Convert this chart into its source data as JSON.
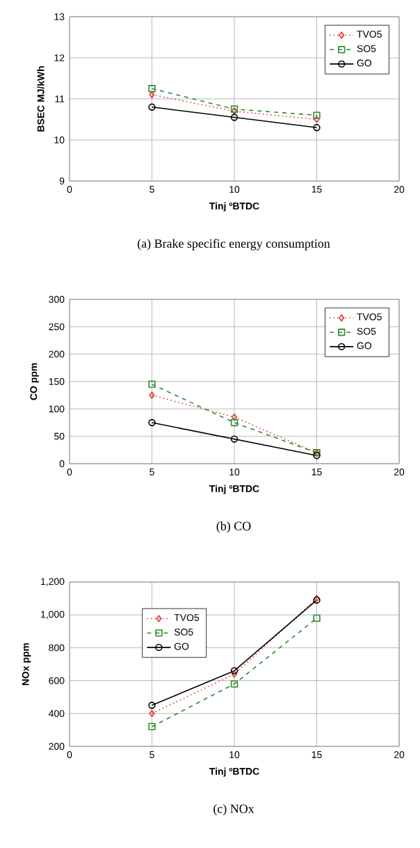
{
  "chart_data": [
    {
      "type": "line",
      "title": "(a) Brake specific energy consumption",
      "xlabel": "Tinj  ºBTDC",
      "ylabel": "BSEC MJ/kWh",
      "x": [
        5,
        10,
        15
      ],
      "xlim": [
        0,
        20
      ],
      "xticks": [
        0,
        5,
        10,
        15,
        20
      ],
      "ylim": [
        9,
        13
      ],
      "yticks": [
        9,
        10,
        11,
        12,
        13
      ],
      "grid": true,
      "legend": "top right",
      "series": [
        {
          "name": "TVO5",
          "color": "#e03c31",
          "marker": "diamond",
          "line_style": "dotted",
          "values": [
            11.1,
            10.7,
            10.5
          ]
        },
        {
          "name": "SO5",
          "color": "#2e8b2e",
          "marker": "square",
          "line_style": "dashed",
          "values": [
            11.25,
            10.75,
            10.6
          ]
        },
        {
          "name": "GO",
          "color": "#000000",
          "marker": "circle",
          "line_style": "solid",
          "values": [
            10.8,
            10.55,
            10.3
          ]
        }
      ]
    },
    {
      "type": "line",
      "title": "(b) CO",
      "xlabel": "Tinj  ºBTDC",
      "ylabel": "CO ppm",
      "x": [
        5,
        10,
        15
      ],
      "xlim": [
        0,
        20
      ],
      "xticks": [
        0,
        5,
        10,
        15,
        20
      ],
      "ylim": [
        0,
        300
      ],
      "yticks": [
        0,
        50,
        100,
        150,
        200,
        250,
        300
      ],
      "grid": true,
      "legend": "top right",
      "series": [
        {
          "name": "TVO5",
          "color": "#e03c31",
          "marker": "diamond",
          "line_style": "dotted",
          "values": [
            125,
            85,
            20
          ]
        },
        {
          "name": "SO5",
          "color": "#2e8b2e",
          "marker": "square",
          "line_style": "dashed",
          "values": [
            145,
            75,
            20
          ]
        },
        {
          "name": "GO",
          "color": "#000000",
          "marker": "circle",
          "line_style": "solid",
          "values": [
            75,
            45,
            15
          ]
        }
      ]
    },
    {
      "type": "line",
      "title": "(c) NOx",
      "xlabel": "Tinj  ºBTDC",
      "ylabel": "NOx ppm",
      "x": [
        5,
        10,
        15
      ],
      "xlim": [
        0,
        20
      ],
      "xticks": [
        0,
        5,
        10,
        15,
        20
      ],
      "ylim": [
        200,
        1200
      ],
      "yticks": [
        200,
        400,
        600,
        800,
        {
          "value": 1000,
          "label": "1,000"
        },
        {
          "value": 1200,
          "label": "1,200"
        }
      ],
      "grid": true,
      "legend": "top left",
      "series": [
        {
          "name": "TVO5",
          "color": "#e03c31",
          "marker": "diamond",
          "line_style": "dotted",
          "values": [
            400,
            640,
            1100
          ]
        },
        {
          "name": "SO5",
          "color": "#2e8b2e",
          "marker": "square",
          "line_style": "dashed",
          "values": [
            320,
            580,
            980
          ]
        },
        {
          "name": "GO",
          "color": "#000000",
          "marker": "circle",
          "line_style": "solid",
          "values": [
            450,
            660,
            1090
          ]
        }
      ]
    }
  ]
}
